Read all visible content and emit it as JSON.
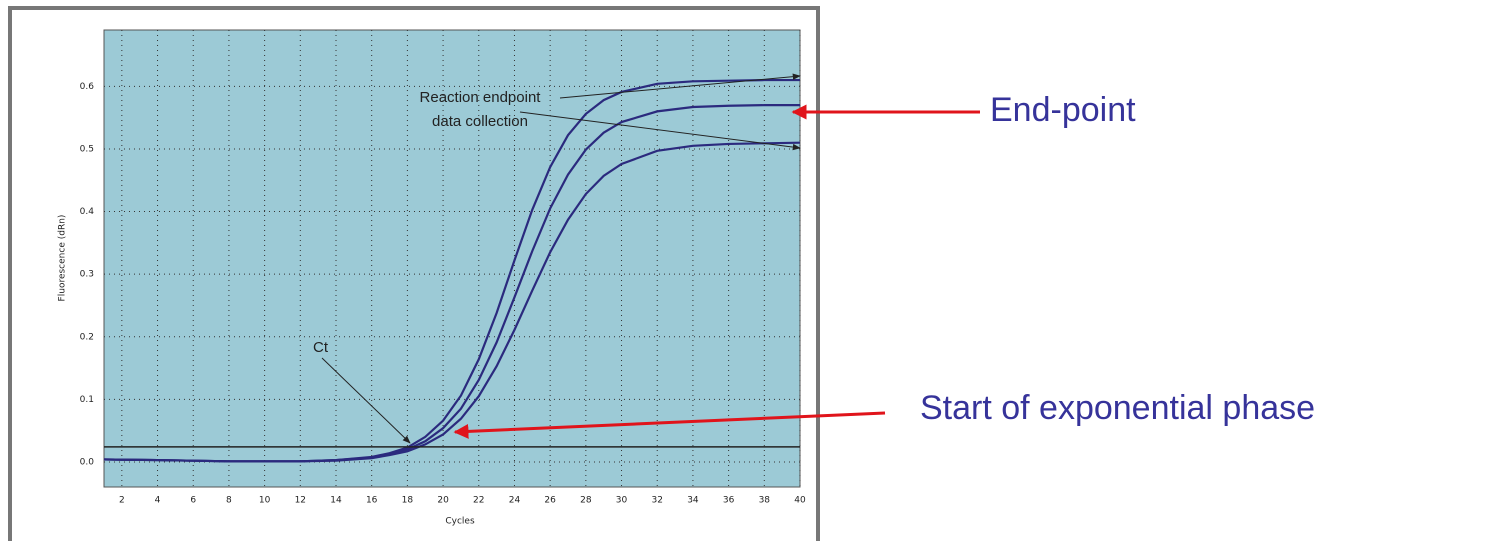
{
  "chart_data": {
    "type": "line",
    "x": [
      1,
      4,
      8,
      12,
      14,
      16,
      17,
      18,
      19,
      20,
      21,
      22,
      23,
      24,
      25,
      26,
      27,
      28,
      29,
      30,
      32,
      34,
      36,
      38,
      40
    ],
    "series": [
      {
        "color": "#2b2a7e",
        "values": [
          0.004,
          0.003,
          0.001,
          0.001,
          0.003,
          0.008,
          0.014,
          0.023,
          0.04,
          0.066,
          0.106,
          0.164,
          0.238,
          0.322,
          0.403,
          0.471,
          0.522,
          0.556,
          0.578,
          0.591,
          0.604,
          0.608,
          0.609,
          0.61,
          0.61
        ]
      },
      {
        "color": "#2b2a7e",
        "values": [
          0.004,
          0.003,
          0.001,
          0.001,
          0.003,
          0.007,
          0.012,
          0.02,
          0.033,
          0.054,
          0.085,
          0.131,
          0.191,
          0.263,
          0.337,
          0.405,
          0.459,
          0.499,
          0.526,
          0.543,
          0.56,
          0.567,
          0.569,
          0.57,
          0.57
        ]
      },
      {
        "color": "#2b2a7e",
        "values": [
          0.004,
          0.003,
          0.001,
          0.001,
          0.002,
          0.006,
          0.011,
          0.017,
          0.028,
          0.044,
          0.069,
          0.105,
          0.153,
          0.211,
          0.274,
          0.335,
          0.387,
          0.428,
          0.457,
          0.476,
          0.497,
          0.505,
          0.508,
          0.509,
          0.51
        ]
      }
    ],
    "threshold": 0.024,
    "xlim": [
      1,
      40
    ],
    "ylim": [
      -0.04,
      0.69
    ],
    "xticks": [
      2,
      4,
      6,
      8,
      10,
      12,
      14,
      16,
      18,
      20,
      22,
      24,
      26,
      28,
      30,
      32,
      34,
      36,
      38,
      40
    ],
    "yticks": [
      {
        "value": 0,
        "label": "0.0"
      },
      0.1,
      0.2,
      0.3,
      0.4,
      0.5,
      0.6
    ],
    "grid": true,
    "background": "#9ccad6",
    "x_label": "Cycles",
    "y_label": "Fluorescence (dRn)",
    "annotations": [
      "Reaction endpoint",
      "data collection",
      "Ct"
    ],
    "callouts": [
      "End-point",
      "Start of exponential phase"
    ]
  }
}
